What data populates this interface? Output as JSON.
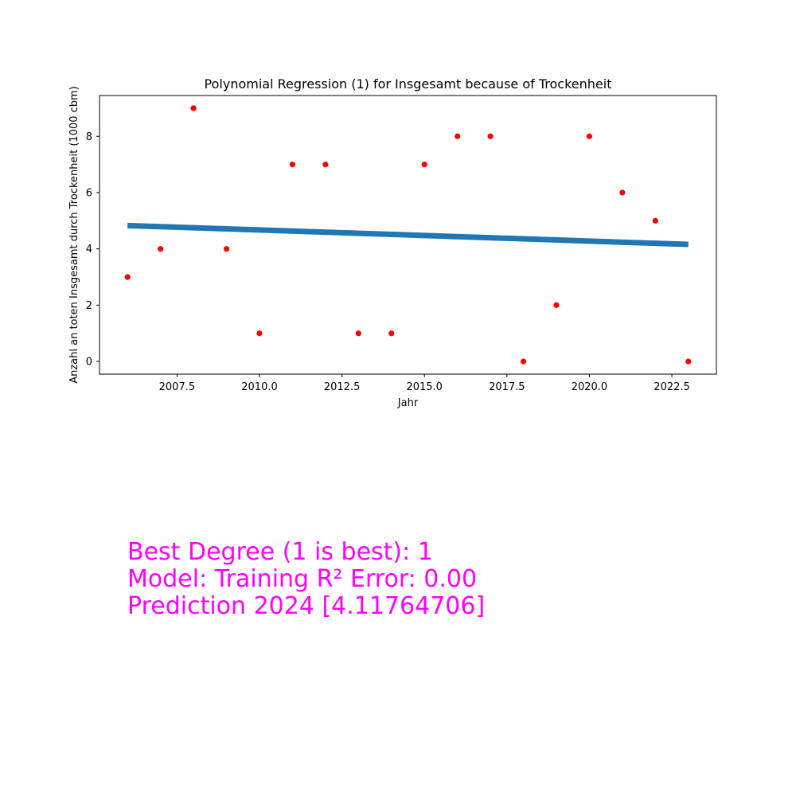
{
  "chart_data": {
    "type": "scatter",
    "title": "Polynomial Regression (1) for Insgesamt because of Trockenheit",
    "xlabel": "Jahr",
    "ylabel": "Anzahl an toten Insgesamt durch Trockenheit (1000 cbm)",
    "xlim": [
      2005.15,
      2023.85
    ],
    "ylim": [
      -0.45,
      9.45
    ],
    "xticks": [
      "2007.5",
      "2010.0",
      "2012.5",
      "2015.0",
      "2017.5",
      "2020.0",
      "2022.5"
    ],
    "yticks": [
      "0",
      "2",
      "4",
      "6",
      "8"
    ],
    "grid": false,
    "series": [
      {
        "kind": "points",
        "color": "#ff0000",
        "x": [
          2006,
          2007,
          2008,
          2009,
          2010,
          2011,
          2012,
          2013,
          2014,
          2015,
          2016,
          2017,
          2018,
          2019,
          2020,
          2021,
          2022,
          2023
        ],
        "y": [
          3,
          4,
          9,
          4,
          1,
          7,
          7,
          1,
          1,
          7,
          8,
          8,
          0,
          2,
          8,
          6,
          5,
          0
        ]
      },
      {
        "kind": "fit-line",
        "color": "#1f77b4",
        "x": [
          2006,
          2023
        ],
        "y": [
          4.83,
          4.16
        ]
      }
    ]
  },
  "annotation": {
    "line1": "Best Degree (1 is best): 1",
    "line2": "Model: Training R² Error: 0.00",
    "line3": "Prediction 2024 [4.11764706]",
    "color": "#ff00ff"
  }
}
